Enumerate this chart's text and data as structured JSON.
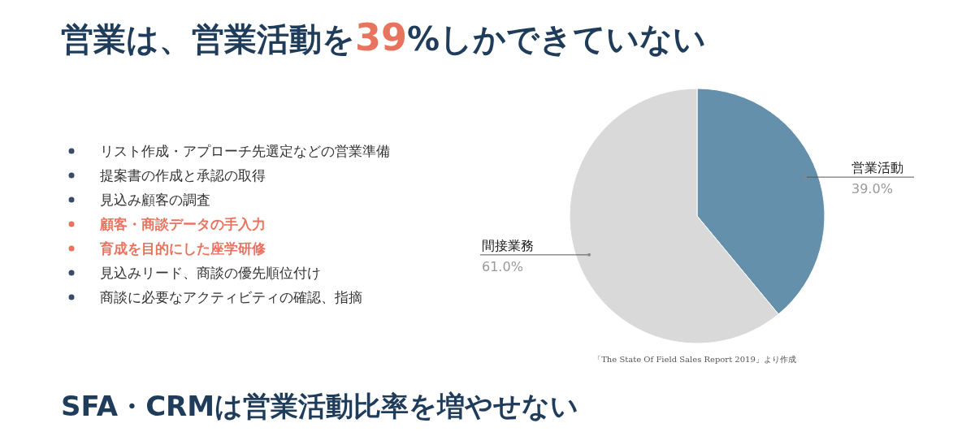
{
  "chart_data": {
    "type": "pie",
    "title": "営業は、営業活動を39%しかできていない",
    "subtitle": "SFA・CRMは営業活動比率を増やせない",
    "categories": [
      "営業活動",
      "間接業務"
    ],
    "values": [
      39,
      61
    ],
    "colors": [
      "#6590ab",
      "#d9d9d9"
    ],
    "value_labels": [
      "39.0%",
      "61.0%"
    ],
    "annotations": [
      "リスト作成・アプローチ先選定などの営業準備",
      "提案書の作成と承認の取得",
      "見込み顧客の調査",
      "顧客・商談データの手入力",
      "育成を目的にした座学研修",
      "見込みリード、商談の優先順位付け",
      "商談に必要なアクティビティの確認、指摘",
      "「The State Of Field Sales Report 2019」より作成"
    ]
  }
}
